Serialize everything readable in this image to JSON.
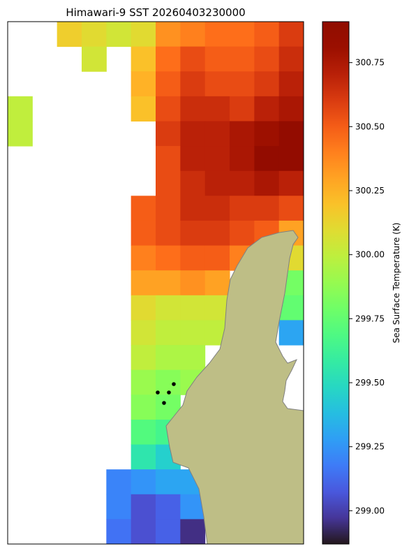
{
  "chart_data": {
    "type": "heatmap",
    "title": "Himawari-9 SST 20260403230000",
    "values": [
      [
        null,
        null,
        300.15,
        300.1,
        300.05,
        300.1,
        300.35,
        300.4,
        300.45,
        300.45,
        300.5,
        300.6
      ],
      [
        null,
        null,
        null,
        300.05,
        null,
        300.2,
        300.45,
        300.55,
        300.5,
        300.5,
        300.55,
        300.65
      ],
      [
        null,
        null,
        null,
        null,
        null,
        300.25,
        300.5,
        300.6,
        300.55,
        300.55,
        300.6,
        300.7
      ],
      [
        300.0,
        null,
        null,
        null,
        null,
        300.2,
        300.55,
        300.65,
        300.65,
        300.6,
        300.7,
        300.75
      ],
      [
        300.0,
        null,
        null,
        null,
        null,
        null,
        300.6,
        300.7,
        300.7,
        300.75,
        300.8,
        300.85
      ],
      [
        null,
        null,
        null,
        null,
        null,
        null,
        300.55,
        300.7,
        300.7,
        300.75,
        300.85,
        300.85
      ],
      [
        null,
        null,
        null,
        null,
        null,
        null,
        300.55,
        300.65,
        300.7,
        300.7,
        300.75,
        300.7
      ],
      [
        null,
        null,
        null,
        null,
        null,
        300.5,
        300.55,
        300.65,
        300.65,
        300.6,
        300.6,
        300.55
      ],
      [
        null,
        null,
        null,
        null,
        null,
        300.5,
        300.55,
        300.6,
        300.6,
        300.55,
        300.5,
        300.3
      ],
      [
        null,
        null,
        null,
        null,
        null,
        300.4,
        300.45,
        300.5,
        300.5,
        300.4,
        null,
        300.1
      ],
      [
        null,
        null,
        null,
        null,
        null,
        300.3,
        300.3,
        300.35,
        300.3,
        null,
        null,
        299.8
      ],
      [
        null,
        null,
        null,
        null,
        null,
        300.1,
        300.05,
        300.05,
        300.05,
        null,
        null,
        299.75
      ],
      [
        null,
        null,
        null,
        null,
        null,
        300.05,
        300.0,
        300.0,
        300.0,
        null,
        null,
        299.3
      ],
      [
        null,
        null,
        null,
        null,
        null,
        300.0,
        299.95,
        299.95,
        null,
        null,
        null,
        null
      ],
      [
        null,
        null,
        null,
        null,
        null,
        299.9,
        299.85,
        299.9,
        null,
        null,
        null,
        null
      ],
      [
        null,
        null,
        null,
        null,
        null,
        299.85,
        299.8,
        null,
        null,
        null,
        null,
        null
      ],
      [
        null,
        null,
        null,
        null,
        null,
        299.7,
        299.65,
        null,
        null,
        null,
        null,
        null
      ],
      [
        null,
        null,
        null,
        null,
        null,
        299.55,
        299.45,
        null,
        null,
        null,
        null,
        null
      ],
      [
        null,
        null,
        null,
        null,
        299.2,
        299.25,
        299.3,
        299.3,
        null,
        null,
        null,
        null
      ],
      [
        null,
        null,
        null,
        null,
        299.2,
        299.05,
        299.1,
        299.25,
        null,
        null,
        null,
        null
      ],
      [
        null,
        null,
        null,
        null,
        299.15,
        299.05,
        299.1,
        298.95,
        null,
        null,
        null,
        null
      ]
    ],
    "colorbar": {
      "label": "Sea Surface Temperature (K)",
      "lim": [
        298.87,
        300.91
      ],
      "ticks": [
        {
          "value": 299.0,
          "label": "299.00"
        },
        299.25,
        {
          "value": 299.5,
          "label": "299.50"
        },
        299.75,
        {
          "value": 300.0,
          "label": "300.00"
        },
        300.25,
        {
          "value": 300.5,
          "label": "300.50"
        },
        300.75
      ]
    },
    "colormap": "turbo"
  }
}
